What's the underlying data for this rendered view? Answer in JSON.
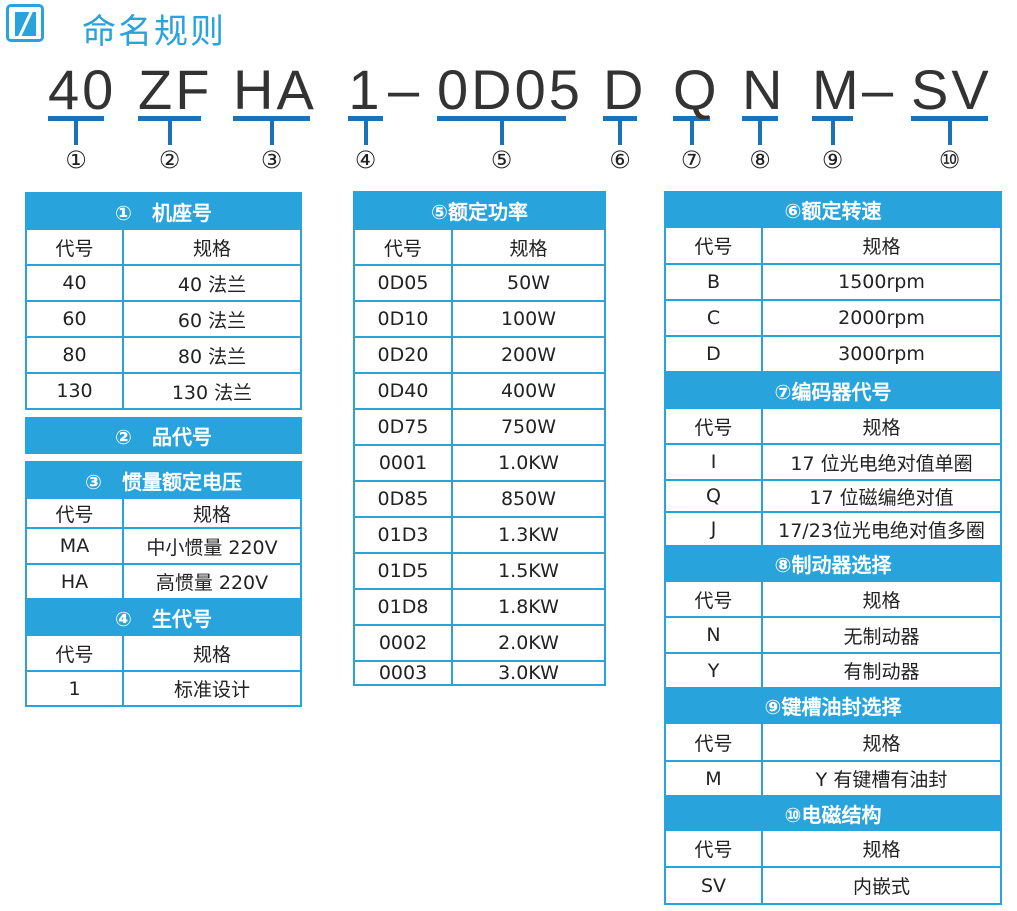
{
  "title": "命名规则",
  "code": [
    {
      "text": "40",
      "num": "①"
    },
    {
      "text": "ZF",
      "num": "②"
    },
    {
      "text": "HA",
      "num": "③"
    },
    {
      "text": "1",
      "num": "④"
    },
    {
      "text": "0D05",
      "num": "⑤"
    },
    {
      "text": "D",
      "num": "⑥"
    },
    {
      "text": "Q",
      "num": "⑦"
    },
    {
      "text": "N",
      "num": "⑧"
    },
    {
      "text": "M",
      "num": "⑨"
    },
    {
      "text": "SV",
      "num": "⑩"
    }
  ],
  "dash": "–",
  "colors": {
    "header": "#29a3dc",
    "code_line": "#1a72b8"
  },
  "tables": [
    {
      "sections": [
        {
          "title": "①　机座号",
          "rows": [
            [
              "代号",
              "规格"
            ],
            [
              "40",
              "40 法兰"
            ],
            [
              "60",
              "60 法兰"
            ],
            [
              "80",
              "80 法兰"
            ],
            [
              "130",
              "130 法兰"
            ]
          ]
        }
      ]
    },
    {
      "sections": [
        {
          "title": "②　品代号",
          "rows": []
        }
      ]
    },
    {
      "sections": [
        {
          "title": "③　惯量额定电压",
          "rows": [
            [
              "代号",
              "规格"
            ],
            [
              "MA",
              "中小惯量 220V"
            ],
            [
              "HA",
              "高惯量 220V"
            ]
          ]
        },
        {
          "title": "④　生代号",
          "rows": [
            [
              "代号",
              "规格"
            ],
            [
              "1",
              "标准设计"
            ]
          ]
        }
      ]
    },
    {
      "sections": [
        {
          "title": "⑤额定功率",
          "rows": [
            [
              "代号",
              "规格"
            ],
            [
              "0D05",
              "50W"
            ],
            [
              "0D10",
              "100W"
            ],
            [
              "0D20",
              "200W"
            ],
            [
              "0D40",
              "400W"
            ],
            [
              "0D75",
              "750W"
            ],
            [
              "0001",
              "1.0KW"
            ],
            [
              "0D85",
              "850W"
            ],
            [
              "01D3",
              "1.3KW"
            ],
            [
              "01D5",
              "1.5KW"
            ],
            [
              "01D8",
              "1.8KW"
            ],
            [
              "0002",
              "2.0KW"
            ],
            [
              "0003",
              "3.0KW"
            ]
          ]
        }
      ]
    },
    {
      "sections": [
        {
          "title": "⑥额定转速",
          "rows": [
            [
              "代号",
              "规格"
            ],
            [
              "B",
              "1500rpm"
            ],
            [
              "C",
              "2000rpm"
            ],
            [
              "D",
              "3000rpm"
            ]
          ]
        },
        {
          "title": "⑦编码器代号",
          "rows": [
            [
              "代号",
              "规格"
            ],
            [
              "I",
              "17 位光电绝对值单圈"
            ],
            [
              "Q",
              "17 位磁编绝对值"
            ],
            [
              "J",
              "17/23位光电绝对值多圈"
            ]
          ]
        },
        {
          "title": "⑧制动器选择",
          "rows": [
            [
              "代号",
              "规格"
            ],
            [
              "N",
              "无制动器"
            ],
            [
              "Y",
              "有制动器"
            ]
          ]
        },
        {
          "title": "⑨键槽油封选择",
          "rows": [
            [
              "代号",
              "规格"
            ],
            [
              "M",
              "Y 有键槽有油封"
            ]
          ]
        },
        {
          "title": "⑩电磁结构",
          "rows": [
            [
              "代号",
              "规格"
            ],
            [
              "SV",
              "内嵌式"
            ]
          ]
        }
      ]
    }
  ]
}
